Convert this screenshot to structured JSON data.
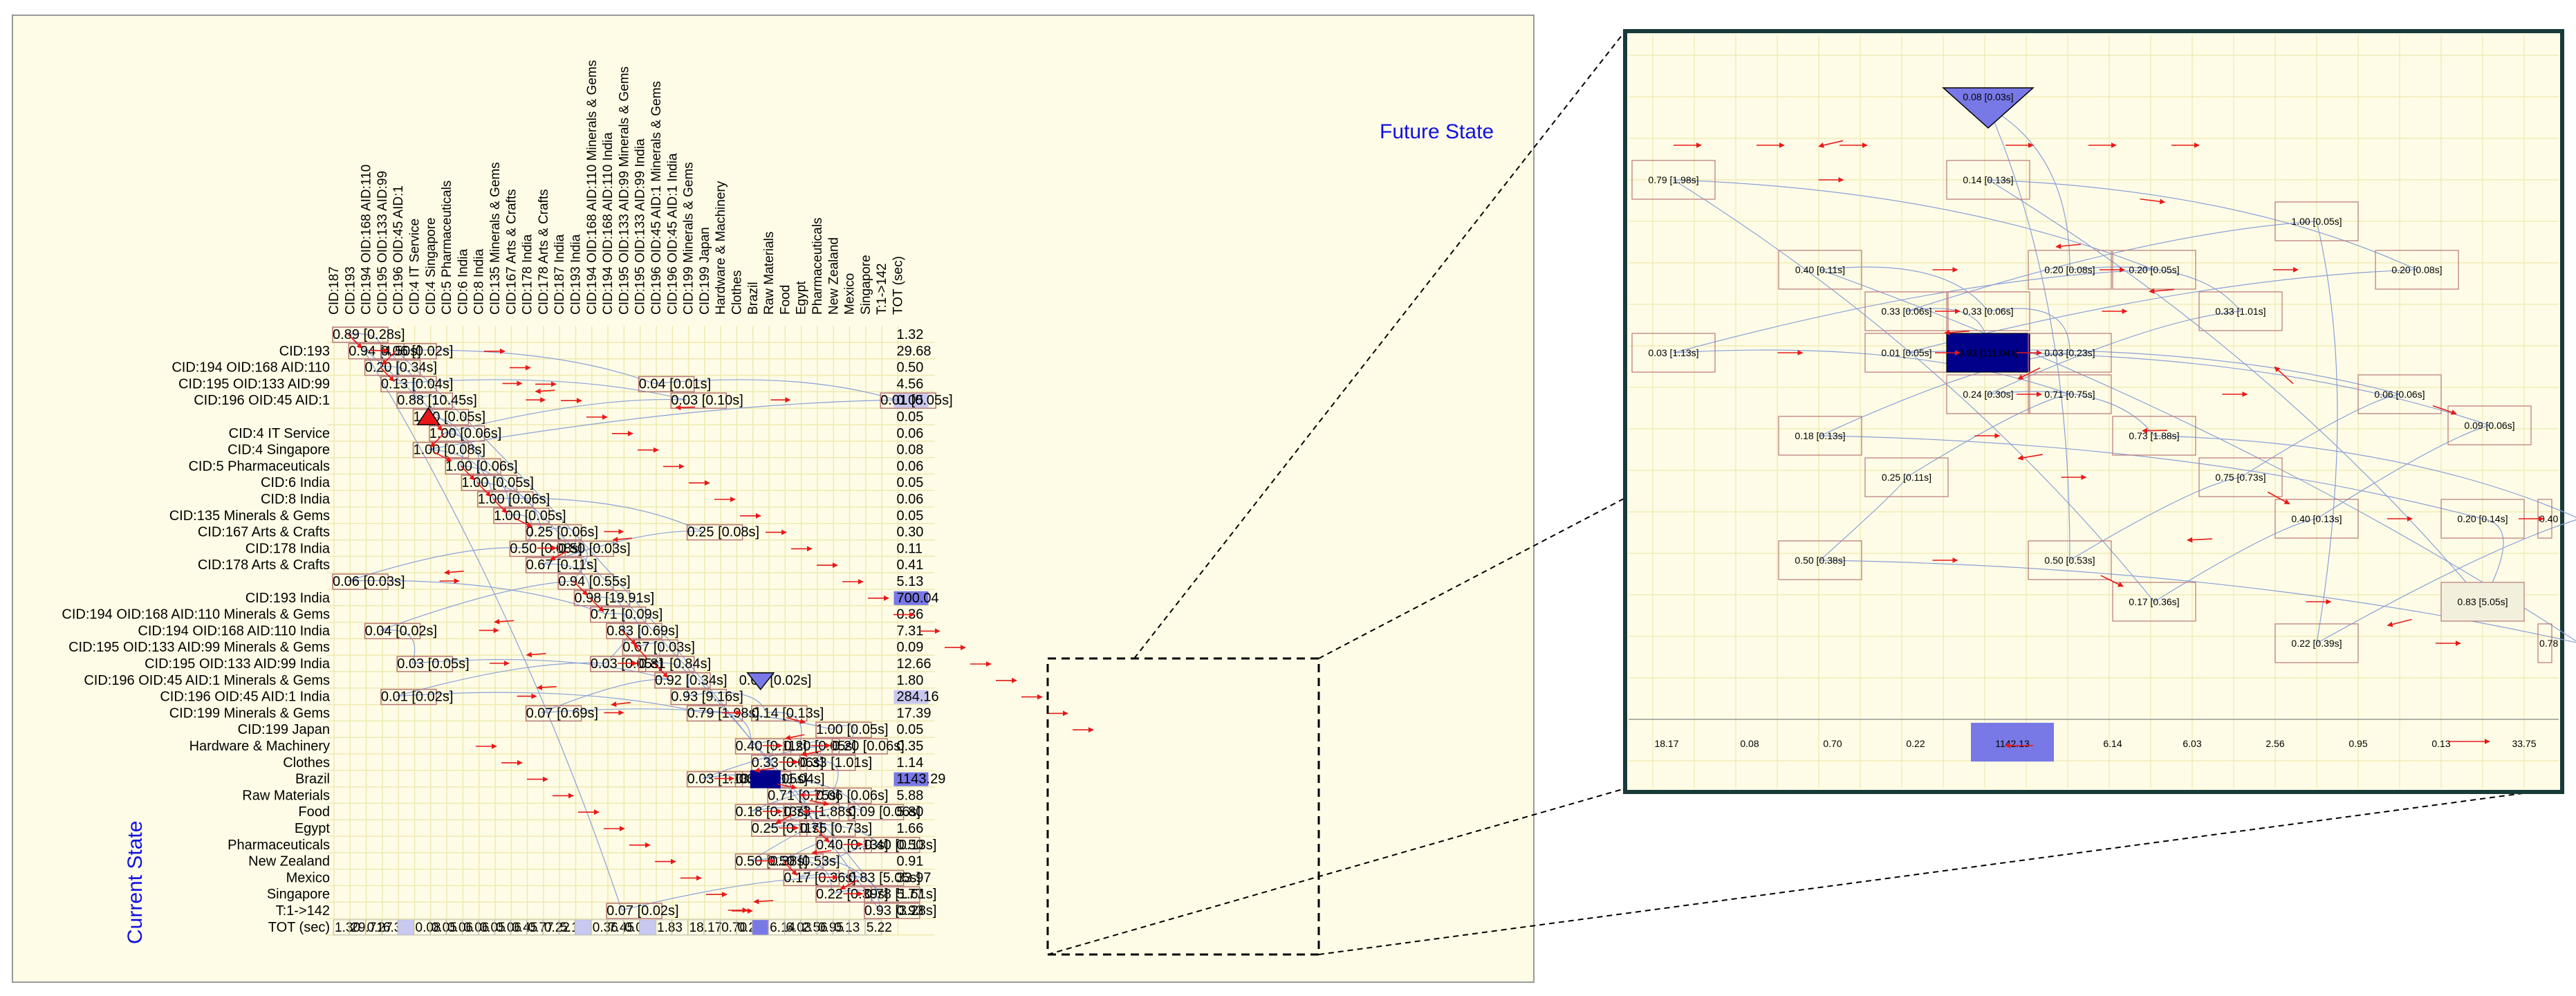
{
  "future_state_label": "Future State",
  "current_state_label": "Current State",
  "columns": [
    "CID:187",
    "CID:193",
    "CID:194 OID:168 AID:110",
    "CID:195 OID:133 AID:99",
    "CID:196 OID:45 AID:1",
    "CID:4 IT Service",
    "CID:4 Singapore",
    "CID:5 Pharmaceuticals",
    "CID:6 India",
    "CID:8 India",
    "CID:135 Minerals & Gems",
    "CID:167 Arts & Crafts",
    "CID:178 India",
    "CID:178 Arts & Crafts",
    "CID:187 India",
    "CID:193 India",
    "CID:194 OID:168 AID:110 Minerals & Gems",
    "CID:194 OID:168 AID:110 India",
    "CID:195 OID:133 AID:99 Minerals & Gems",
    "CID:195 OID:133 AID:99 India",
    "CID:196 OID:45 AID:1 Minerals & Gems",
    "CID:196 OID:45 AID:1 India",
    "CID:199 Minerals & Gems",
    "CID:199 Japan",
    "Hardware & Machinery",
    "Clothes",
    "Brazil",
    "Raw Materials",
    "Food",
    "Egypt",
    "Pharmaceuticals",
    "New Zealand",
    "Mexico",
    "Singapore",
    "T:1->142",
    "TOT (sec)"
  ],
  "rows": [
    {
      "label": "",
      "tot": "1.32"
    },
    {
      "label": "CID:193",
      "tot": "29.68"
    },
    {
      "label": "CID:194 OID:168 AID:110",
      "tot": "0.50"
    },
    {
      "label": "CID:195 OID:133 AID:99",
      "tot": "4.56"
    },
    {
      "label": "CID:196 OID:45 AID:1",
      "tot": "0.05"
    },
    {
      "label": "",
      "tot": "0.05"
    },
    {
      "label": "CID:4 IT Service",
      "tot": "0.06"
    },
    {
      "label": "CID:4 Singapore",
      "tot": "0.08"
    },
    {
      "label": "CID:5 Pharmaceuticals",
      "tot": "0.06"
    },
    {
      "label": "CID:6 India",
      "tot": "0.05"
    },
    {
      "label": "CID:8 India",
      "tot": "0.06"
    },
    {
      "label": "CID:135 Minerals & Gems",
      "tot": "0.05"
    },
    {
      "label": "CID:167 Arts & Crafts",
      "tot": "0.30"
    },
    {
      "label": "CID:178 India",
      "tot": "0.11"
    },
    {
      "label": "CID:178 Arts & Crafts",
      "tot": "0.41"
    },
    {
      "label": "",
      "tot": "5.13"
    },
    {
      "label": "CID:193 India",
      "tot": "700.04"
    },
    {
      "label": "CID:194 OID:168 AID:110 Minerals & Gems",
      "tot": "0.36"
    },
    {
      "label": "CID:194 OID:168 AID:110 India",
      "tot": "7.31"
    },
    {
      "label": "CID:195 OID:133 AID:99 Minerals & Gems",
      "tot": "0.09"
    },
    {
      "label": "CID:195 OID:133 AID:99 India",
      "tot": "12.66"
    },
    {
      "label": "CID:196 OID:45 AID:1 Minerals & Gems",
      "tot": "1.80"
    },
    {
      "label": "CID:196 OID:45 AID:1 India",
      "tot": "284.16"
    },
    {
      "label": "CID:199 Minerals & Gems",
      "tot": "17.39"
    },
    {
      "label": "CID:199 Japan",
      "tot": "0.05"
    },
    {
      "label": "Hardware & Machinery",
      "tot": "0.35"
    },
    {
      "label": "Clothes",
      "tot": "1.14"
    },
    {
      "label": "Brazil",
      "tot": "1143.29"
    },
    {
      "label": "Raw Materials",
      "tot": "5.88"
    },
    {
      "label": "Food",
      "tot": "5.80"
    },
    {
      "label": "Egypt",
      "tot": "1.66"
    },
    {
      "label": "Pharmaceuticals",
      "tot": "0.50"
    },
    {
      "label": "New Zealand",
      "tot": "0.91"
    },
    {
      "label": "Mexico",
      "tot": "33.97"
    },
    {
      "label": "Singapore",
      "tot": "5.77"
    },
    {
      "label": "T:1->142",
      "tot": "0.93"
    },
    {
      "label": "TOT (sec)",
      "tot": ""
    }
  ],
  "tot_row_values": [
    "1.30",
    "29.71",
    "0.27",
    "6.30",
    "",
    "0.08",
    "0.05",
    "0.06",
    "0.06",
    "0.05",
    "0.06",
    "0.45",
    "0.77",
    "0.22",
    "5.13",
    "",
    "0.36",
    "7.45",
    "0.06",
    "",
    "1.83",
    "",
    "18.17",
    "",
    "0.70",
    "0.22",
    "",
    "6.14",
    "6.03",
    "2.56",
    "0.95",
    "0.13",
    "",
    "5.22"
  ],
  "cells": [
    {
      "text": "0.89 [0.28s]",
      "r": 0,
      "c": 0
    },
    {
      "text": "0.94 [4.50s]",
      "r": 1,
      "c": 1
    },
    {
      "text": "0.06 [0.02s]",
      "r": 1,
      "c": 3
    },
    {
      "text": "0.20 [0.34s]",
      "r": 2,
      "c": 2
    },
    {
      "text": "0.13 [0.04s]",
      "r": 3,
      "c": 3
    },
    {
      "text": "0.04 [0.01s]",
      "r": 3,
      "c": 19
    },
    {
      "text": "0.88 [10.45s]",
      "r": 4,
      "c": 4
    },
    {
      "text": "0.03 [0.10s]",
      "r": 4,
      "c": 21
    },
    {
      "text": "0.01 [0.05s]",
      "r": 4,
      "c": 34
    },
    {
      "text": "1.00 [0.05s]",
      "r": 5,
      "c": 5
    },
    {
      "text": "1.00 [0.06s]",
      "r": 6,
      "c": 6
    },
    {
      "text": "1.00 [0.08s]",
      "r": 7,
      "c": 5
    },
    {
      "text": "1.00 [0.06s]",
      "r": 8,
      "c": 7
    },
    {
      "text": "1.00 [0.05s]",
      "r": 9,
      "c": 8
    },
    {
      "text": "1.00 [0.06s]",
      "r": 10,
      "c": 9
    },
    {
      "text": "1.00 [0.05s]",
      "r": 11,
      "c": 10
    },
    {
      "text": "0.25 [0.06s]",
      "r": 12,
      "c": 12
    },
    {
      "text": "0.25 [0.08s]",
      "r": 12,
      "c": 22
    },
    {
      "text": "0.50 [0.08s]",
      "r": 13,
      "c": 11
    },
    {
      "text": "0.50 [0.03s]",
      "r": 13,
      "c": 14
    },
    {
      "text": "0.67 [0.11s]",
      "r": 14,
      "c": 12
    },
    {
      "text": "0.06 [0.03s]",
      "r": 15,
      "c": 0
    },
    {
      "text": "0.94 [0.55s]",
      "r": 15,
      "c": 14
    },
    {
      "text": "0.98 [19.91s]",
      "r": 16,
      "c": 15
    },
    {
      "text": "0.71 [0.09s]",
      "r": 17,
      "c": 16
    },
    {
      "text": "0.04 [0.02s]",
      "r": 18,
      "c": 2
    },
    {
      "text": "0.83 [0.69s]",
      "r": 18,
      "c": 17
    },
    {
      "text": "0.67 [0.03s]",
      "r": 19,
      "c": 18
    },
    {
      "text": "0.03 [0.05s]",
      "r": 20,
      "c": 4
    },
    {
      "text": "0.03 [0.05s]",
      "r": 20,
      "c": 16
    },
    {
      "text": "0.81 [0.84s]",
      "r": 20,
      "c": 19
    },
    {
      "text": "0.92 [0.34s]",
      "r": 21,
      "c": 20
    },
    {
      "text": "0.01 [0.02s]",
      "r": 22,
      "c": 3
    },
    {
      "text": "0.93 [9.16s]",
      "r": 22,
      "c": 21
    },
    {
      "text": "0.07 [0.69s]",
      "r": 23,
      "c": 12
    },
    {
      "text": "0.79 [1.98s]",
      "r": 23,
      "c": 22
    },
    {
      "text": "0.14 [0.13s]",
      "r": 23,
      "c": 26
    },
    {
      "text": "1.00 [0.05s]",
      "r": 24,
      "c": 30
    },
    {
      "text": "0.40 [0.11s]",
      "r": 25,
      "c": 25
    },
    {
      "text": "0.20 [0.05s]",
      "r": 25,
      "c": 28
    },
    {
      "text": "0.20 [0.06s]",
      "r": 25,
      "c": 31
    },
    {
      "text": "0.33 [0.06s]",
      "r": 26,
      "c": 26
    },
    {
      "text": "0.33 [1.01s]",
      "r": 26,
      "c": 29
    },
    {
      "text": "0.03 [1.13s]",
      "r": 27,
      "c": 22
    },
    {
      "text": "0.01 [0.05s]",
      "r": 27,
      "c": 25
    },
    {
      "text": "0.06 [0.06s]",
      "r": 28,
      "c": 30
    },
    {
      "text": "0.71 [0.75s]",
      "r": 28,
      "c": 27
    },
    {
      "text": "0.09 [0.06s]",
      "r": 29,
      "c": 32
    },
    {
      "text": "0.18 [0.13s]",
      "r": 29,
      "c": 25
    },
    {
      "text": "0.73 [1.88s]",
      "r": 29,
      "c": 28
    },
    {
      "text": "0.25 [0.11s]",
      "r": 30,
      "c": 26
    },
    {
      "text": "0.75 [0.73s]",
      "r": 30,
      "c": 29
    },
    {
      "text": "0.40 [0.13s]",
      "r": 31,
      "c": 30
    },
    {
      "text": "0.40 [0.13s]",
      "r": 31,
      "c": 33
    },
    {
      "text": "0.50 [0.38s]",
      "r": 32,
      "c": 25
    },
    {
      "text": "0.50 [0.53s]",
      "r": 32,
      "c": 27
    },
    {
      "text": "0.17 [0.36s]",
      "r": 33,
      "c": 28
    },
    {
      "text": "0.83 [5.05s]",
      "r": 33,
      "c": 32
    },
    {
      "text": "0.22 [0.39s]",
      "r": 34,
      "c": 30
    },
    {
      "text": "0.78 [1.61s]",
      "r": 34,
      "c": 33
    },
    {
      "text": "0.07 [0.02s]",
      "r": 35,
      "c": 17
    },
    {
      "text": "0.93 [3.28s]",
      "r": 35,
      "c": 33
    }
  ],
  "extra_labels": [
    {
      "text": "0.05 [0.02s]",
      "r": 21,
      "c": 26
    },
    {
      "text": "0.93 [111.04s]",
      "r": 27,
      "c": 26
    }
  ],
  "zoom": {
    "cells": [
      {
        "text": "0.79 [1.98s]"
      },
      {
        "text": "0.14 [0.13s]"
      },
      {
        "text": "1.00 [0.05s]"
      },
      {
        "text": "0.40 [0.11s]"
      },
      {
        "text": "0.20 [0.08s]"
      },
      {
        "text": "0.20 [0.05s]"
      },
      {
        "text": "0.20 [0.08s]"
      },
      {
        "text": "0.33 [0.06s]"
      },
      {
        "text": "0.33 [0.06s]"
      },
      {
        "text": "0.33 [1.01s]"
      },
      {
        "text": "0.03 [1.13s]"
      },
      {
        "text": "0.01 [0.05s]"
      },
      {
        "text": "0.93 [111.04s]"
      },
      {
        "text": "0.03 [0.23s]"
      },
      {
        "text": "0.24 [0.30s]"
      },
      {
        "text": "0.71 [0.75s]"
      },
      {
        "text": "0.06 [0.06s]"
      },
      {
        "text": "0.09 [0.06s]"
      },
      {
        "text": "0.18 [0.13s]"
      },
      {
        "text": "0.73 [1.88s]"
      },
      {
        "text": "0.25 [0.11s]"
      },
      {
        "text": "0.75 [0.73s]"
      },
      {
        "text": "0.40 [0.13s]"
      },
      {
        "text": "0.20 [0.14s]"
      },
      {
        "text": "0.40"
      },
      {
        "text": "0.50 [0.38s]"
      },
      {
        "text": "0.50 [0.53s]"
      },
      {
        "text": "0.17 [0.36s]"
      },
      {
        "text": "0.83 [5.05s]"
      },
      {
        "text": "0.22 [0.39s]"
      },
      {
        "text": "0.78"
      },
      {
        "text": "0.08 [0.03s]"
      }
    ],
    "tot_values": [
      "18.17",
      "0.08",
      "0.70",
      "0.22",
      "1142.13",
      "6.14",
      "6.03",
      "2.56",
      "0.95",
      "0.13",
      "33.75"
    ]
  },
  "colors": {
    "panel_bg": "#fefce6",
    "grid": "#efe9b0",
    "cell_border": "#b87878",
    "arrow": "#e81818",
    "link": "#8aa0d8",
    "highlight_dark": "#00008b",
    "highlight_mid": "#7878e6",
    "highlight_light": "#c8c8f0",
    "label_blue": "#1010e0",
    "zoom_border": "#1a3a3a"
  }
}
